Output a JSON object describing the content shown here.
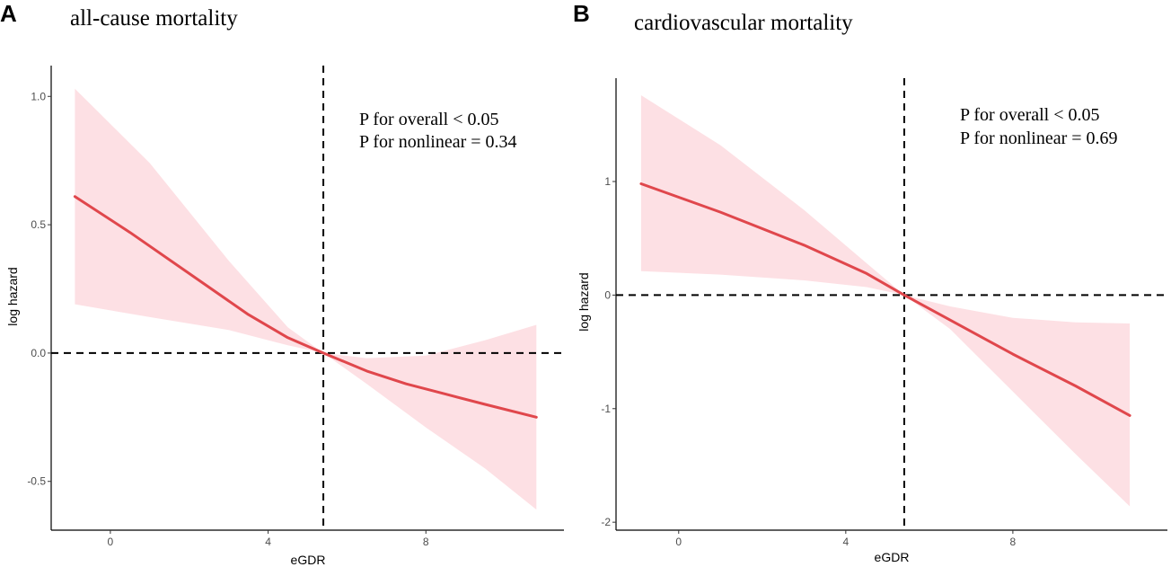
{
  "chart_data": [
    {
      "type": "line",
      "panel_label": "A",
      "title": "all-cause mortality",
      "xlabel": "eGDR",
      "ylabel": "log hazard",
      "xlim": [
        -1.5,
        11.5
      ],
      "ylim": [
        -0.69,
        1.12
      ],
      "x_ticks": [
        0,
        4,
        8
      ],
      "x_tick_labels": [
        "0",
        "4",
        "8"
      ],
      "y_ticks": [
        -0.5,
        0.0,
        0.5,
        1.0
      ],
      "y_tick_labels": [
        "-0.5",
        "0.0",
        "0.5",
        "1.0"
      ],
      "reference_x": 5.4,
      "reference_y": 0,
      "annotations": [
        "P for overall < 0.05",
        "P for nonlinear = 0.34"
      ],
      "series": [
        {
          "name": "log hazard",
          "color": "#e0474c",
          "x": [
            -0.9,
            0.5,
            2.0,
            3.5,
            4.5,
            5.4,
            6.5,
            7.5,
            8.5,
            9.5,
            10.8
          ],
          "y": [
            0.61,
            0.47,
            0.31,
            0.15,
            0.06,
            0.0,
            -0.07,
            -0.12,
            -0.16,
            -0.2,
            -0.25
          ]
        }
      ],
      "ci": {
        "color": "#fde0e4",
        "x": [
          -0.9,
          1.0,
          3.0,
          4.5,
          5.4,
          6.5,
          8.0,
          9.5,
          10.8
        ],
        "upper": [
          1.03,
          0.74,
          0.36,
          0.1,
          0.0,
          -0.02,
          -0.01,
          0.05,
          0.11
        ],
        "lower": [
          0.19,
          0.14,
          0.09,
          0.03,
          0.0,
          -0.12,
          -0.29,
          -0.45,
          -0.61
        ]
      }
    },
    {
      "type": "line",
      "panel_label": "B",
      "title": "cardiovascular mortality",
      "xlabel": "eGDR",
      "ylabel": "log hazard",
      "xlim": [
        -1.5,
        11.7
      ],
      "ylim": [
        -2.07,
        1.91
      ],
      "x_ticks": [
        0,
        4,
        8
      ],
      "x_tick_labels": [
        "0",
        "4",
        "8"
      ],
      "y_ticks": [
        -2,
        -1,
        0,
        1
      ],
      "y_tick_labels": [
        "-2",
        "-1",
        "0",
        "1"
      ],
      "reference_x": 5.4,
      "reference_y": 0,
      "annotations": [
        "P for overall < 0.05",
        "P for nonlinear = 0.69"
      ],
      "series": [
        {
          "name": "log hazard",
          "color": "#e0474c",
          "x": [
            -0.9,
            1.0,
            3.0,
            4.5,
            5.4,
            6.5,
            8.0,
            9.5,
            10.8
          ],
          "y": [
            0.98,
            0.73,
            0.44,
            0.19,
            0.0,
            -0.22,
            -0.52,
            -0.8,
            -1.06
          ]
        }
      ],
      "ci": {
        "color": "#fde0e4",
        "x": [
          -0.9,
          1.0,
          3.0,
          4.5,
          5.4,
          6.5,
          8.0,
          9.5,
          10.8
        ],
        "upper": [
          1.76,
          1.32,
          0.75,
          0.28,
          0.0,
          -0.1,
          -0.2,
          -0.24,
          -0.25
        ],
        "lower": [
          0.21,
          0.18,
          0.13,
          0.07,
          0.0,
          -0.3,
          -0.85,
          -1.4,
          -1.86
        ]
      }
    }
  ]
}
